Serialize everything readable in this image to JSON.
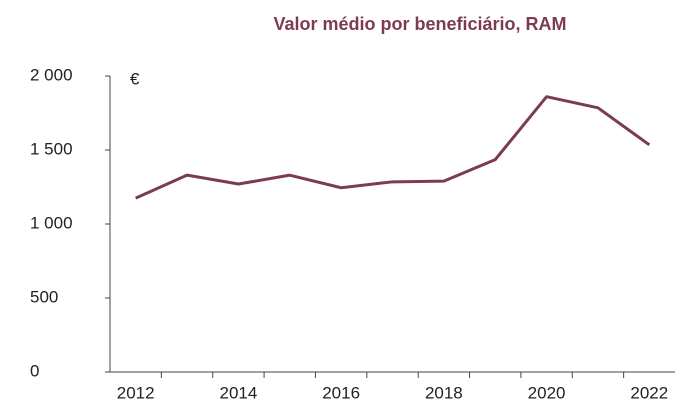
{
  "chart_data": {
    "type": "line",
    "title": "Valor médio por beneficiário, RAM",
    "y_unit": "€",
    "categories": [
      "2012",
      null,
      "2014",
      null,
      "2016",
      null,
      "2018",
      null,
      "2020",
      null,
      "2022"
    ],
    "values": [
      1175,
      1330,
      1270,
      1330,
      1245,
      1285,
      1290,
      1435,
      1860,
      1785,
      1535
    ],
    "color": "#7b3b55",
    "ylim": [
      0,
      2000
    ],
    "yticks": [
      {
        "value": 0,
        "label": "0"
      },
      {
        "value": 500,
        "label": "500"
      },
      {
        "value": 1000,
        "label": "1 000"
      },
      {
        "value": 1500,
        "label": "1 500"
      },
      {
        "value": 2000,
        "label": "2 000"
      }
    ],
    "grid": false
  }
}
